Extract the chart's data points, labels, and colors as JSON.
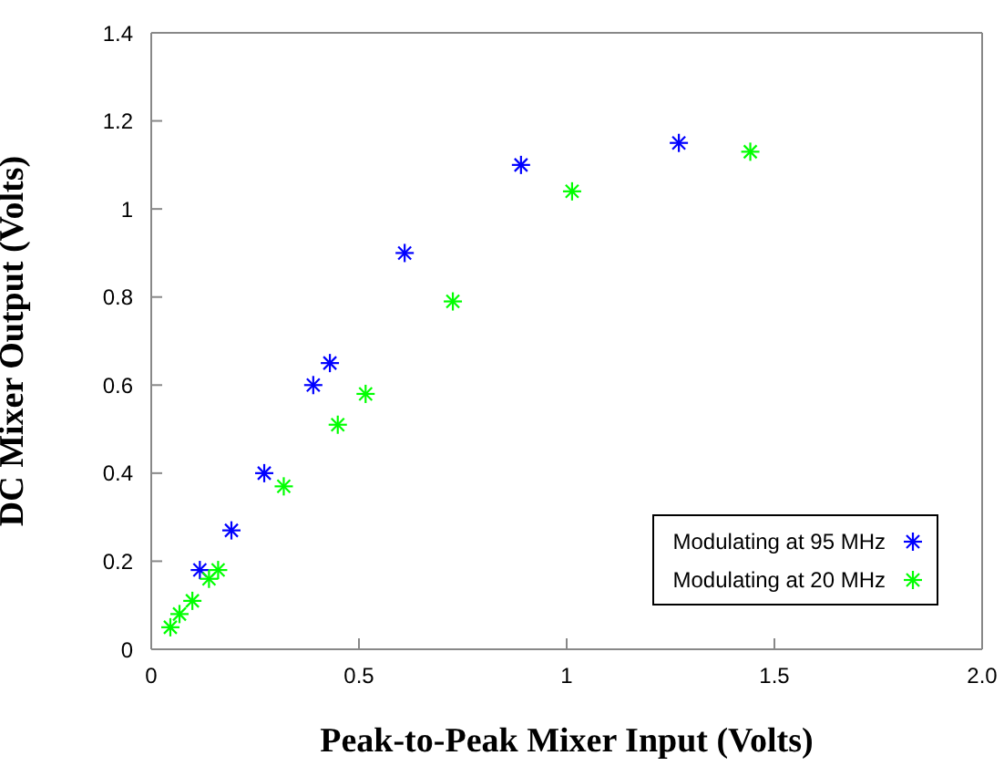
{
  "chart_data": {
    "type": "scatter",
    "xlabel": "Peak-to-Peak Mixer Input (Volts)",
    "ylabel": "DC Mixer Output (Volts)",
    "xlim": [
      0,
      2
    ],
    "xticks": [
      0,
      0.5,
      1,
      1.5,
      {
        "value": 2,
        "label": "2.0"
      }
    ],
    "ylim": [
      0,
      1.4
    ],
    "yticks": [
      0,
      0.2,
      0.4,
      0.6,
      0.8,
      1,
      1.2,
      1.4
    ],
    "legend": "bottom right",
    "marker": "cross",
    "series": [
      {
        "name": "Modulating at 95 MHz",
        "color": "#0000ff",
        "x": [
          0.117,
          0.193,
          0.272,
          0.39,
          0.43,
          0.61,
          0.89,
          1.27
        ],
        "values": [
          0.18,
          0.27,
          0.4,
          0.6,
          0.65,
          0.9,
          1.1,
          1.15
        ]
      },
      {
        "name": "Modulating at 20 MHz",
        "color": "#00ff00",
        "x": [
          0.046,
          0.068,
          0.099,
          0.139,
          0.161,
          0.319,
          0.449,
          0.516,
          0.726,
          1.013,
          1.442
        ],
        "values": [
          0.05,
          0.08,
          0.11,
          0.16,
          0.18,
          0.37,
          0.51,
          0.58,
          0.79,
          1.04,
          1.13
        ]
      }
    ]
  }
}
